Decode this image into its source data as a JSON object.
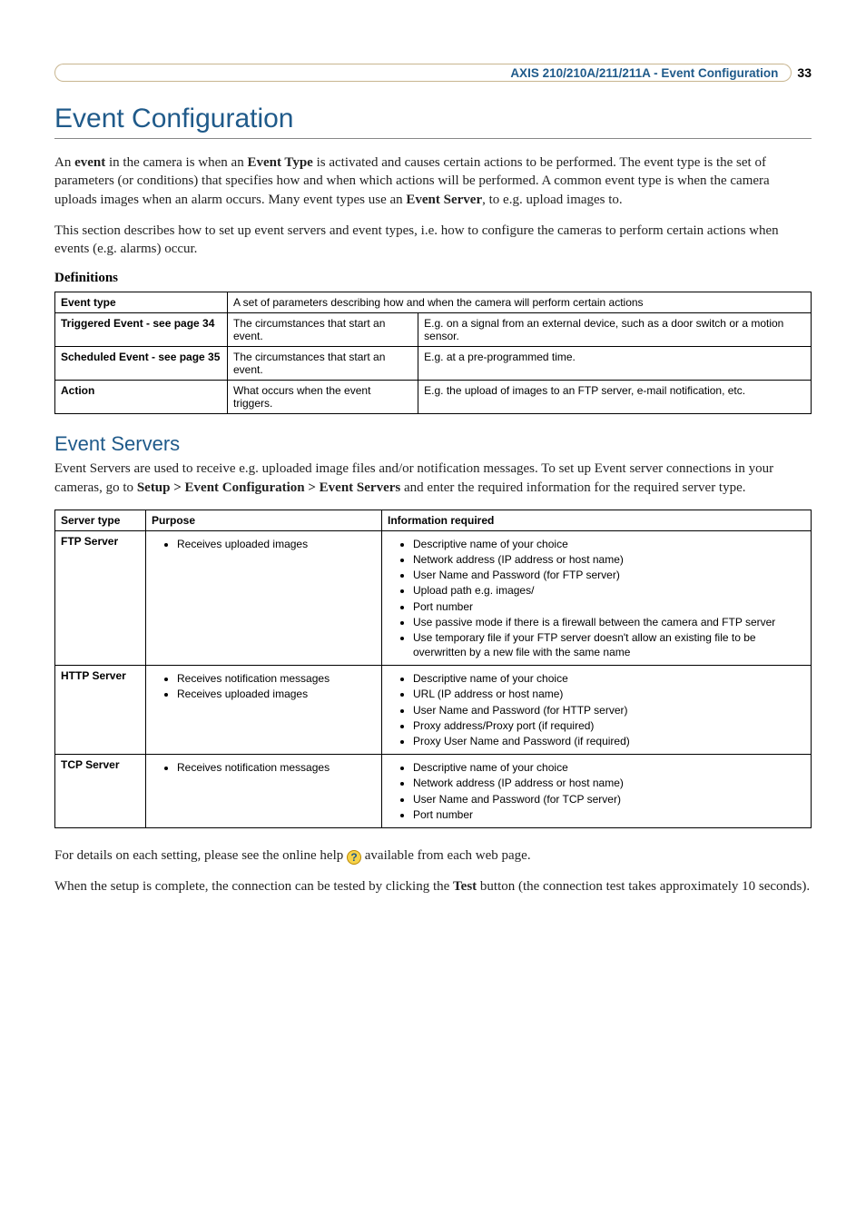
{
  "header": {
    "breadcrumb": "AXIS 210/210A/211/211A - Event Configuration",
    "page_number": "33"
  },
  "title": "Event Configuration",
  "intro_p1_pre": "An ",
  "intro_p1_b1": "event",
  "intro_p1_mid1": " in the camera is when an ",
  "intro_p1_b2": "Event Type",
  "intro_p1_mid2": " is activated and causes certain actions to be performed. The event type is the set of parameters (or conditions) that specifies how and when which actions will be performed. A common event type is when the camera uploads images when an alarm occurs. Many event types use an ",
  "intro_p1_b3": "Event Server",
  "intro_p1_post": ", to e.g. upload images to.",
  "intro_p2": "This section describes how to set up event servers and event types, i.e. how to configure the cameras to perform certain actions when events (e.g. alarms) occur.",
  "definitions_heading": "Definitions",
  "def_table": {
    "rows": [
      {
        "label": "Event type",
        "c1_colspan": true,
        "c1": "A set of parameters describing how and when the camera will perform certain actions"
      },
      {
        "label": "Triggered Event - see page 34",
        "c1": "The circumstances that start an event.",
        "c2": "E.g. on a signal from an external device, such as a door switch or a motion sensor."
      },
      {
        "label": "Scheduled Event - see page 35",
        "c1": "The circumstances that start an event.",
        "c2": "E.g. at a pre-programmed time."
      },
      {
        "label": "Action",
        "c1": "What occurs when the event triggers.",
        "c2": "E.g. the upload of images to an FTP server, e-mail notification, etc."
      }
    ]
  },
  "event_servers_heading": "Event Servers",
  "es_p1_pre": "Event Servers are used to receive e.g. uploaded image files and/or notification messages. To set up Event server connections in your cameras, go to ",
  "es_p1_b1": "Setup > Event Configuration > Event Servers",
  "es_p1_post": " and enter the required information for the required server type.",
  "srv_table": {
    "headers": [
      "Server type",
      "Purpose",
      "Information required"
    ],
    "rows": [
      {
        "type": "FTP Server",
        "purpose": [
          "Receives uploaded images"
        ],
        "info": [
          "Descriptive name of your choice",
          "Network address (IP address or host name)",
          "User Name and Password (for FTP server)",
          "Upload path e.g. images/",
          "Port number",
          "Use passive mode if there is a firewall between the camera and FTP server",
          "Use temporary file if your FTP server doesn't allow an existing file to be overwritten by a new file with the same name"
        ]
      },
      {
        "type": "HTTP Server",
        "purpose": [
          "Receives notification messages",
          "Receives uploaded images"
        ],
        "info": [
          "Descriptive name of your choice",
          "URL (IP address or host name)",
          "User Name and Password (for HTTP server)",
          "Proxy address/Proxy port (if required)",
          "Proxy User Name and Password (if required)"
        ]
      },
      {
        "type": "TCP Server",
        "purpose": [
          "Receives notification messages"
        ],
        "info": [
          "Descriptive name of your choice",
          "Network address (IP address or host name)",
          "User Name and Password (for TCP server)",
          "Port number"
        ]
      }
    ]
  },
  "footer_p1_pre": "For details on each setting, please see the online help ",
  "footer_p1_post": " available from each web page.",
  "footer_p2_pre": "When the setup is complete, the connection can be tested by clicking the ",
  "footer_p2_b": "Test",
  "footer_p2_post": " button (the connection test takes approximately 10 seconds).",
  "help_icon_glyph": "?"
}
